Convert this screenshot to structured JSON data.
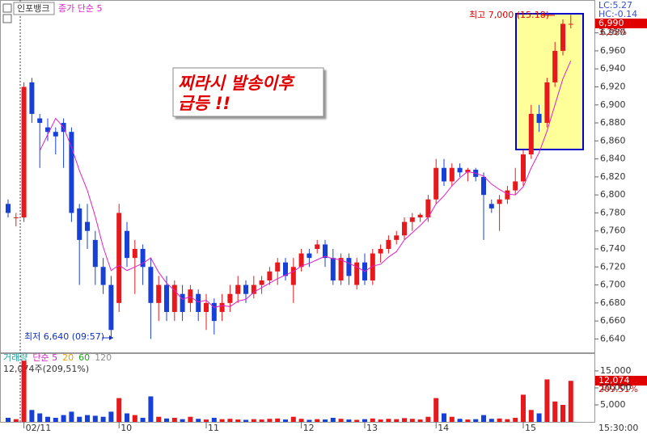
{
  "header": {
    "stock": "인포뱅크",
    "indicator": "종가 단순 5"
  },
  "chart_data": [
    {
      "type": "candlestick",
      "annotation": [
        "찌라시 발송이후",
        "급등 !!"
      ],
      "high_label": "최고 7,000 (15:18)",
      "low_label": "최저 6,640 (09:57)",
      "lc_label": "LC:5.27",
      "hc_label": "HC:-0.14",
      "last_price_label": "6,990",
      "change_label": "3.25%",
      "time_label": "15:30:00",
      "up_color": "#e8191c",
      "down_color": "#1640d8",
      "ma_color": "#e020c8",
      "categories": [
        null,
        null,
        "02/11",
        null,
        null,
        null,
        null,
        null,
        null,
        null,
        null,
        null,
        null,
        null,
        "10",
        null,
        null,
        null,
        null,
        null,
        null,
        null,
        null,
        null,
        null,
        "11",
        null,
        null,
        null,
        null,
        null,
        null,
        null,
        null,
        null,
        null,
        null,
        "12",
        null,
        null,
        null,
        null,
        null,
        null,
        null,
        "13",
        null,
        null,
        null,
        null,
        null,
        null,
        null,
        null,
        "14",
        null,
        null,
        null,
        null,
        null,
        null,
        null,
        null,
        null,
        null,
        "15",
        null,
        null,
        null,
        null,
        null,
        null
      ],
      "ohlc": [
        [
          6790,
          6795,
          6775,
          6780
        ],
        [
          6775,
          6780,
          6765,
          6775
        ],
        [
          6775,
          6925,
          6770,
          6920
        ],
        [
          6925,
          6930,
          6880,
          6890
        ],
        [
          6885,
          6890,
          6830,
          6880
        ],
        [
          6875,
          6885,
          6860,
          6870
        ],
        [
          6870,
          6875,
          6845,
          6865
        ],
        [
          6880,
          6885,
          6830,
          6870
        ],
        [
          6870,
          6875,
          6770,
          6780
        ],
        [
          6785,
          6790,
          6700,
          6750
        ],
        [
          6770,
          6790,
          6740,
          6760
        ],
        [
          6750,
          6760,
          6700,
          6720
        ],
        [
          6720,
          6730,
          6690,
          6700
        ],
        [
          6700,
          6710,
          6640,
          6650
        ],
        [
          6680,
          6790,
          6670,
          6780
        ],
        [
          6760,
          6770,
          6720,
          6730
        ],
        [
          6730,
          6750,
          6690,
          6740
        ],
        [
          6740,
          6745,
          6700,
          6720
        ],
        [
          6720,
          6730,
          6640,
          6680
        ],
        [
          6680,
          6710,
          6660,
          6700
        ],
        [
          6700,
          6710,
          6660,
          6670
        ],
        [
          6670,
          6705,
          6660,
          6700
        ],
        [
          6690,
          6700,
          6660,
          6670
        ],
        [
          6680,
          6700,
          6670,
          6695
        ],
        [
          6690,
          6695,
          6660,
          6670
        ],
        [
          6670,
          6690,
          6650,
          6680
        ],
        [
          6680,
          6685,
          6645,
          6660
        ],
        [
          6670,
          6690,
          6660,
          6680
        ],
        [
          6680,
          6700,
          6670,
          6690
        ],
        [
          6690,
          6710,
          6680,
          6700
        ],
        [
          6700,
          6705,
          6680,
          6690
        ],
        [
          6690,
          6710,
          6685,
          6700
        ],
        [
          6700,
          6710,
          6690,
          6705
        ],
        [
          6705,
          6720,
          6700,
          6715
        ],
        [
          6715,
          6730,
          6700,
          6725
        ],
        [
          6725,
          6730,
          6705,
          6710
        ],
        [
          6700,
          6730,
          6680,
          6720
        ],
        [
          6720,
          6740,
          6715,
          6735
        ],
        [
          6735,
          6740,
          6720,
          6730
        ],
        [
          6740,
          6750,
          6735,
          6745
        ],
        [
          6745,
          6750,
          6720,
          6730
        ],
        [
          6730,
          6740,
          6700,
          6705
        ],
        [
          6705,
          6735,
          6700,
          6730
        ],
        [
          6730,
          6735,
          6700,
          6710
        ],
        [
          6700,
          6730,
          6695,
          6725
        ],
        [
          6725,
          6735,
          6700,
          6705
        ],
        [
          6705,
          6740,
          6700,
          6735
        ],
        [
          6735,
          6745,
          6725,
          6740
        ],
        [
          6740,
          6755,
          6735,
          6750
        ],
        [
          6750,
          6760,
          6745,
          6755
        ],
        [
          6755,
          6775,
          6750,
          6770
        ],
        [
          6770,
          6780,
          6760,
          6775
        ],
        [
          6775,
          6780,
          6770,
          6778
        ],
        [
          6775,
          6800,
          6770,
          6795
        ],
        [
          6795,
          6840,
          6790,
          6830
        ],
        [
          6830,
          6840,
          6810,
          6815
        ],
        [
          6815,
          6835,
          6810,
          6830
        ],
        [
          6830,
          6835,
          6820,
          6825
        ],
        [
          6825,
          6830,
          6815,
          6828
        ],
        [
          6828,
          6830,
          6815,
          6820
        ],
        [
          6820,
          6825,
          6750,
          6800
        ],
        [
          6790,
          6795,
          6780,
          6785
        ],
        [
          6790,
          6800,
          6760,
          6795
        ],
        [
          6795,
          6810,
          6790,
          6805
        ],
        [
          6805,
          6830,
          6800,
          6815
        ],
        [
          6815,
          6850,
          6810,
          6845
        ],
        [
          6845,
          6900,
          6840,
          6890
        ],
        [
          6890,
          6900,
          6870,
          6880
        ],
        [
          6880,
          6930,
          6875,
          6925
        ],
        [
          6925,
          6970,
          6920,
          6960
        ],
        [
          6960,
          6995,
          6955,
          6990
        ],
        [
          6990,
          7000,
          6985,
          6990
        ]
      ],
      "ma5": [
        null,
        null,
        null,
        null,
        6849,
        6867,
        6885,
        6875,
        6853,
        6827,
        6805,
        6776,
        6742,
        6716,
        6722,
        6716,
        6720,
        6724,
        6730,
        6714,
        6702,
        6694,
        6684,
        6687,
        6681,
        6683,
        6675,
        6677,
        6676,
        6682,
        6684,
        6692,
        6697,
        6702,
        6707,
        6711,
        6715,
        6721,
        6724,
        6728,
        6732,
        6729,
        6728,
        6724,
        6720,
        6715,
        6721,
        6723,
        6731,
        6737,
        6750,
        6758,
        6766,
        6775,
        6790,
        6799,
        6810,
        6819,
        6826,
        6824,
        6821,
        6812,
        6806,
        6801,
        6800,
        6809,
        6830,
        6847,
        6871,
        6900,
        6929,
        6949
      ],
      "ylim": [
        6626,
        7012
      ],
      "yticks": [
        {
          "value": 6640,
          "label": "6,640"
        },
        {
          "value": 6660,
          "label": "6,660"
        },
        {
          "value": 6680,
          "label": "6,680"
        },
        {
          "value": 6700,
          "label": "6,700"
        },
        {
          "value": 6720,
          "label": "6,720"
        },
        {
          "value": 6740,
          "label": "6,740"
        },
        {
          "value": 6760,
          "label": "6,760"
        },
        {
          "value": 6780,
          "label": "6,780"
        },
        {
          "value": 6800,
          "label": "6,800"
        },
        {
          "value": 6820,
          "label": "6,820"
        },
        {
          "value": 6840,
          "label": "6,840"
        },
        {
          "value": 6860,
          "label": "6,860"
        },
        {
          "value": 6880,
          "label": "6,880"
        },
        {
          "value": 6900,
          "label": "6,900"
        },
        {
          "value": 6920,
          "label": "6,920"
        },
        {
          "value": 6940,
          "label": "6,940"
        },
        {
          "value": 6960,
          "label": "6,960"
        },
        {
          "value": 6980,
          "label": "6,980"
        }
      ]
    },
    {
      "type": "bar",
      "legend": [
        {
          "name": "거래량",
          "color": "#20a0a0"
        },
        {
          "name": "단순 5",
          "color": "#e020c8"
        },
        {
          "name": "20",
          "color": "#f0a000"
        },
        {
          "name": "60",
          "color": "#20a020"
        },
        {
          "name": "120",
          "color": "#909090"
        }
      ],
      "current_label": "12,074주(209,51%)",
      "volume_tag": "12,074",
      "ratio_tag": "209.51%",
      "values": [
        1200,
        800,
        18000,
        3500,
        2500,
        1500,
        1200,
        2000,
        3000,
        1500,
        2000,
        1800,
        1500,
        3000,
        7000,
        2500,
        2000,
        1200,
        7500,
        1500,
        1000,
        1200,
        800,
        1500,
        900,
        700,
        1200,
        800,
        900,
        700,
        600,
        800,
        700,
        900,
        1000,
        700,
        1500,
        900,
        600,
        800,
        700,
        1200,
        900,
        700,
        600,
        800,
        1000,
        700,
        900,
        800,
        1100,
        900,
        700,
        1500,
        7000,
        2500,
        1500,
        900,
        700,
        800,
        2000,
        900,
        1000,
        800,
        1200,
        8000,
        3500,
        2500,
        12500,
        6000,
        5000,
        12074
      ],
      "ylim": [
        0,
        19500
      ],
      "yticks": [
        {
          "value": 5000,
          "label": "5,000"
        },
        {
          "value": 10000,
          "label": "10,000"
        },
        {
          "value": 15000,
          "label": "15,000"
        }
      ]
    }
  ]
}
